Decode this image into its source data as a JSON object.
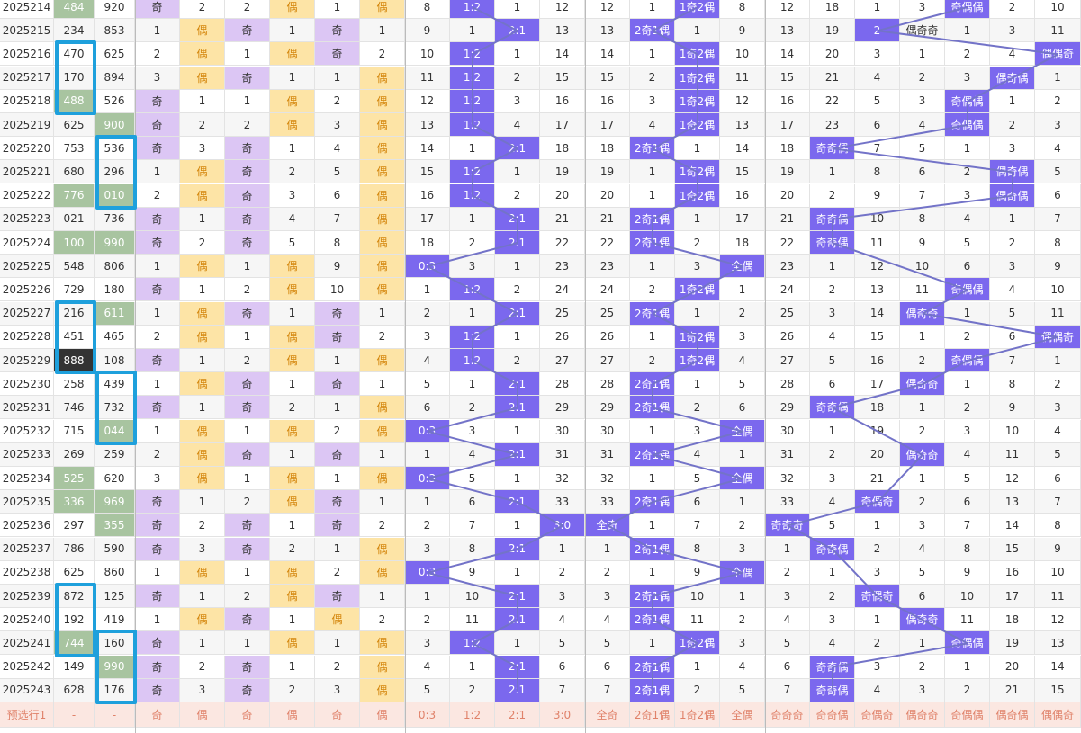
{
  "colors": {
    "odd": "#dcc6f4",
    "even": "#fde4a6",
    "purple": "#7b68ee",
    "green": "#a8c4a0",
    "box": "#1ea0dc",
    "line": "#7373c8"
  },
  "rows": [
    {
      "v": [
        "2025214",
        "484",
        "920",
        "奇",
        "2",
        "2",
        "偶",
        "1",
        "偶",
        "8",
        "1:2",
        "1",
        "12",
        "12",
        "1",
        "1奇2偶",
        "8",
        "12",
        "18",
        "1",
        "3",
        "奇偶偶",
        "2",
        "10"
      ],
      "hl": {
        "1": "green",
        "10": "purple",
        "15": "purple",
        "21": "purple",
        "3": "odd",
        "6": "even",
        "8": "even"
      }
    },
    {
      "v": [
        "2025215",
        "234",
        "853",
        "1",
        "偶",
        "奇",
        "1",
        "奇",
        "1",
        "9",
        "1",
        "2:1",
        "13",
        "13",
        "2奇1偶",
        "1",
        "9",
        "13",
        "19",
        "2",
        "偶奇奇",
        "1",
        "3",
        "11"
      ],
      "hl": {
        "4": "even",
        "5": "odd",
        "7": "odd",
        "11": "purple",
        "14": "purple",
        "19": "purple"
      }
    },
    {
      "v": [
        "2025216",
        "470",
        "625",
        "2",
        "偶",
        "1",
        "偶",
        "奇",
        "2",
        "10",
        "1:2",
        "1",
        "14",
        "14",
        "1",
        "1奇2偶",
        "10",
        "14",
        "20",
        "3",
        "1",
        "2",
        "4",
        "偶偶奇"
      ],
      "hl": {
        "4": "even",
        "6": "even",
        "7": "odd",
        "10": "purple",
        "15": "purple",
        "23": "purple"
      }
    },
    {
      "v": [
        "2025217",
        "170",
        "894",
        "3",
        "偶",
        "奇",
        "1",
        "1",
        "偶",
        "11",
        "1:2",
        "2",
        "15",
        "15",
        "2",
        "1奇2偶",
        "11",
        "15",
        "21",
        "4",
        "2",
        "3",
        "偶奇偶",
        "1"
      ],
      "hl": {
        "4": "even",
        "5": "odd",
        "8": "even",
        "10": "purple",
        "15": "purple",
        "22": "purple"
      }
    },
    {
      "v": [
        "2025218",
        "488",
        "526",
        "奇",
        "1",
        "1",
        "偶",
        "2",
        "偶",
        "12",
        "1:2",
        "3",
        "16",
        "16",
        "3",
        "1奇2偶",
        "12",
        "16",
        "22",
        "5",
        "3",
        "奇偶偶",
        "1",
        "2"
      ],
      "hl": {
        "1": "green",
        "3": "odd",
        "6": "even",
        "8": "even",
        "10": "purple",
        "15": "purple",
        "21": "purple"
      }
    },
    {
      "v": [
        "2025219",
        "625",
        "900",
        "奇",
        "2",
        "2",
        "偶",
        "3",
        "偶",
        "13",
        "1:2",
        "4",
        "17",
        "17",
        "4",
        "1奇2偶",
        "13",
        "17",
        "23",
        "6",
        "4",
        "奇偶偶",
        "2",
        "3"
      ],
      "hl": {
        "2": "green",
        "3": "odd",
        "6": "even",
        "8": "even",
        "10": "purple",
        "15": "purple",
        "21": "purple"
      }
    },
    {
      "v": [
        "2025220",
        "753",
        "536",
        "奇",
        "3",
        "奇",
        "1",
        "4",
        "偶",
        "14",
        "1",
        "2:1",
        "18",
        "18",
        "2奇1偶",
        "1",
        "14",
        "18",
        "奇奇偶",
        "7",
        "5",
        "1",
        "3",
        "4"
      ],
      "hl": {
        "3": "odd",
        "5": "odd",
        "8": "even",
        "11": "purple",
        "14": "purple",
        "18": "purple"
      }
    },
    {
      "v": [
        "2025221",
        "680",
        "296",
        "1",
        "偶",
        "奇",
        "2",
        "5",
        "偶",
        "15",
        "1:2",
        "1",
        "19",
        "19",
        "1",
        "1奇2偶",
        "15",
        "19",
        "1",
        "8",
        "6",
        "2",
        "偶奇偶",
        "5"
      ],
      "hl": {
        "4": "even",
        "5": "odd",
        "8": "even",
        "10": "purple",
        "15": "purple",
        "22": "purple"
      }
    },
    {
      "v": [
        "2025222",
        "776",
        "010",
        "2",
        "偶",
        "奇",
        "3",
        "6",
        "偶",
        "16",
        "1:2",
        "2",
        "20",
        "20",
        "1",
        "1奇2偶",
        "16",
        "20",
        "2",
        "9",
        "7",
        "3",
        "偶奇偶",
        "6"
      ],
      "hl": {
        "1": "green",
        "2": "green",
        "4": "even",
        "5": "odd",
        "8": "even",
        "10": "purple",
        "15": "purple",
        "22": "purple"
      }
    },
    {
      "v": [
        "2025223",
        "021",
        "736",
        "奇",
        "1",
        "奇",
        "4",
        "7",
        "偶",
        "17",
        "1",
        "2:1",
        "21",
        "21",
        "2奇1偶",
        "1",
        "17",
        "21",
        "奇奇偶",
        "10",
        "8",
        "4",
        "1",
        "7"
      ],
      "hl": {
        "3": "odd",
        "5": "odd",
        "8": "even",
        "11": "purple",
        "14": "purple",
        "18": "purple"
      }
    },
    {
      "v": [
        "2025224",
        "100",
        "990",
        "奇",
        "2",
        "奇",
        "5",
        "8",
        "偶",
        "18",
        "2",
        "2:1",
        "22",
        "22",
        "2奇1偶",
        "2",
        "18",
        "22",
        "奇奇偶",
        "11",
        "9",
        "5",
        "2",
        "8"
      ],
      "hl": {
        "1": "green",
        "2": "green",
        "3": "odd",
        "5": "odd",
        "8": "even",
        "11": "purple",
        "14": "purple",
        "18": "purple"
      }
    },
    {
      "v": [
        "2025225",
        "548",
        "806",
        "1",
        "偶",
        "1",
        "偶",
        "9",
        "偶",
        "0:3",
        "3",
        "1",
        "23",
        "23",
        "1",
        "3",
        "全偶",
        "23",
        "1",
        "12",
        "10",
        "6",
        "3",
        "9"
      ],
      "hl": {
        "4": "even",
        "6": "even",
        "8": "even",
        "9": "purple",
        "16": "purple"
      }
    },
    {
      "v": [
        "2025226",
        "729",
        "180",
        "奇",
        "1",
        "2",
        "偶",
        "10",
        "偶",
        "1",
        "1:2",
        "2",
        "24",
        "24",
        "2",
        "1奇2偶",
        "1",
        "24",
        "2",
        "13",
        "11",
        "奇偶偶",
        "4",
        "10"
      ],
      "hl": {
        "3": "odd",
        "6": "even",
        "8": "even",
        "10": "purple",
        "15": "purple",
        "21": "purple"
      }
    },
    {
      "v": [
        "2025227",
        "216",
        "611",
        "1",
        "偶",
        "奇",
        "1",
        "奇",
        "1",
        "2",
        "1",
        "2:1",
        "25",
        "25",
        "2奇1偶",
        "1",
        "2",
        "25",
        "3",
        "14",
        "偶奇奇",
        "1",
        "5",
        "11"
      ],
      "hl": {
        "2": "green",
        "4": "even",
        "5": "odd",
        "7": "odd",
        "11": "purple",
        "14": "purple",
        "20": "purple"
      }
    },
    {
      "v": [
        "2025228",
        "451",
        "465",
        "2",
        "偶",
        "1",
        "偶",
        "奇",
        "2",
        "3",
        "1:2",
        "1",
        "26",
        "26",
        "1",
        "1奇2偶",
        "3",
        "26",
        "4",
        "15",
        "1",
        "2",
        "6",
        "偶偶奇"
      ],
      "hl": {
        "4": "even",
        "6": "even",
        "7": "odd",
        "10": "purple",
        "15": "purple",
        "23": "purple"
      }
    },
    {
      "v": [
        "2025229",
        "888",
        "108",
        "奇",
        "1",
        "2",
        "偶",
        "1",
        "偶",
        "4",
        "1:2",
        "2",
        "27",
        "27",
        "2",
        "1奇2偶",
        "4",
        "27",
        "5",
        "16",
        "2",
        "奇偶偶",
        "7",
        "1"
      ],
      "hl": {
        "1": "dark",
        "3": "odd",
        "6": "even",
        "8": "even",
        "10": "purple",
        "15": "purple",
        "21": "purple"
      }
    },
    {
      "v": [
        "2025230",
        "258",
        "439",
        "1",
        "偶",
        "奇",
        "1",
        "奇",
        "1",
        "5",
        "1",
        "2:1",
        "28",
        "28",
        "2奇1偶",
        "1",
        "5",
        "28",
        "6",
        "17",
        "偶奇奇",
        "1",
        "8",
        "2"
      ],
      "hl": {
        "4": "even",
        "5": "odd",
        "7": "odd",
        "11": "purple",
        "14": "purple",
        "20": "purple"
      }
    },
    {
      "v": [
        "2025231",
        "746",
        "732",
        "奇",
        "1",
        "奇",
        "2",
        "1",
        "偶",
        "6",
        "2",
        "2:1",
        "29",
        "29",
        "2奇1偶",
        "2",
        "6",
        "29",
        "奇奇偶",
        "18",
        "1",
        "2",
        "9",
        "3"
      ],
      "hl": {
        "3": "odd",
        "5": "odd",
        "8": "even",
        "11": "purple",
        "14": "purple",
        "18": "purple"
      }
    },
    {
      "v": [
        "2025232",
        "715",
        "044",
        "1",
        "偶",
        "1",
        "偶",
        "2",
        "偶",
        "0:3",
        "3",
        "1",
        "30",
        "30",
        "1",
        "3",
        "全偶",
        "30",
        "1",
        "19",
        "2",
        "3",
        "10",
        "4"
      ],
      "hl": {
        "2": "green",
        "4": "even",
        "6": "even",
        "8": "even",
        "9": "purple",
        "16": "purple"
      }
    },
    {
      "v": [
        "2025233",
        "269",
        "259",
        "2",
        "偶",
        "奇",
        "1",
        "奇",
        "1",
        "1",
        "4",
        "2:1",
        "31",
        "31",
        "2奇1偶",
        "4",
        "1",
        "31",
        "2",
        "20",
        "偶奇奇",
        "4",
        "11",
        "5"
      ],
      "hl": {
        "4": "even",
        "5": "odd",
        "7": "odd",
        "11": "purple",
        "14": "purple",
        "20": "purple"
      }
    },
    {
      "v": [
        "2025234",
        "525",
        "620",
        "3",
        "偶",
        "1",
        "偶",
        "1",
        "偶",
        "0:3",
        "5",
        "1",
        "32",
        "32",
        "1",
        "5",
        "全偶",
        "32",
        "3",
        "21",
        "1",
        "5",
        "12",
        "6"
      ],
      "hl": {
        "1": "green",
        "4": "even",
        "6": "even",
        "8": "even",
        "9": "purple",
        "16": "purple"
      }
    },
    {
      "v": [
        "2025235",
        "336",
        "969",
        "奇",
        "1",
        "2",
        "偶",
        "奇",
        "1",
        "1",
        "6",
        "2:1",
        "33",
        "33",
        "2奇1偶",
        "6",
        "1",
        "33",
        "4",
        "奇偶奇",
        "2",
        "6",
        "13",
        "7"
      ],
      "hl": {
        "1": "green",
        "2": "green",
        "3": "odd",
        "6": "even",
        "7": "odd",
        "11": "purple",
        "14": "purple",
        "19": "purple"
      }
    },
    {
      "v": [
        "2025236",
        "297",
        "355",
        "奇",
        "2",
        "奇",
        "1",
        "奇",
        "2",
        "2",
        "7",
        "1",
        "3:0",
        "全奇",
        "1",
        "7",
        "2",
        "奇奇奇",
        "5",
        "1",
        "3",
        "7",
        "14",
        "8"
      ],
      "hl": {
        "2": "green",
        "3": "odd",
        "5": "odd",
        "7": "odd",
        "12": "purple",
        "13": "purple",
        "17": "purple"
      }
    },
    {
      "v": [
        "2025237",
        "786",
        "590",
        "奇",
        "3",
        "奇",
        "2",
        "1",
        "偶",
        "3",
        "8",
        "2:1",
        "1",
        "1",
        "2奇1偶",
        "8",
        "3",
        "1",
        "奇奇偶",
        "2",
        "4",
        "8",
        "15",
        "9"
      ],
      "hl": {
        "3": "odd",
        "5": "odd",
        "8": "even",
        "11": "purple",
        "14": "purple",
        "18": "purple"
      }
    },
    {
      "v": [
        "2025238",
        "625",
        "860",
        "1",
        "偶",
        "1",
        "偶",
        "2",
        "偶",
        "0:3",
        "9",
        "1",
        "2",
        "2",
        "1",
        "9",
        "全偶",
        "2",
        "1",
        "3",
        "5",
        "9",
        "16",
        "10"
      ],
      "hl": {
        "4": "even",
        "6": "even",
        "8": "even",
        "9": "purple",
        "16": "purple"
      }
    },
    {
      "v": [
        "2025239",
        "872",
        "125",
        "奇",
        "1",
        "2",
        "偶",
        "奇",
        "1",
        "1",
        "10",
        "2:1",
        "3",
        "3",
        "2奇1偶",
        "10",
        "1",
        "3",
        "2",
        "奇偶奇",
        "6",
        "10",
        "17",
        "11"
      ],
      "hl": {
        "3": "odd",
        "6": "even",
        "7": "odd",
        "11": "purple",
        "14": "purple",
        "19": "purple"
      }
    },
    {
      "v": [
        "2025240",
        "192",
        "419",
        "1",
        "偶",
        "奇",
        "1",
        "偶",
        "2",
        "2",
        "11",
        "2:1",
        "4",
        "4",
        "2奇1偶",
        "11",
        "2",
        "4",
        "3",
        "1",
        "偶奇奇",
        "11",
        "18",
        "12"
      ],
      "hl": {
        "4": "even",
        "5": "odd",
        "7": "even",
        "11": "purple",
        "14": "purple",
        "20": "purple"
      }
    },
    {
      "v": [
        "2025241",
        "744",
        "160",
        "奇",
        "1",
        "1",
        "偶",
        "1",
        "偶",
        "3",
        "1:2",
        "1",
        "5",
        "5",
        "1",
        "1奇2偶",
        "3",
        "5",
        "4",
        "2",
        "1",
        "奇偶偶",
        "19",
        "13"
      ],
      "hl": {
        "1": "green",
        "3": "odd",
        "6": "even",
        "8": "even",
        "10": "purple",
        "15": "purple",
        "21": "purple"
      }
    },
    {
      "v": [
        "2025242",
        "149",
        "990",
        "奇",
        "2",
        "奇",
        "1",
        "2",
        "偶",
        "4",
        "1",
        "2:1",
        "6",
        "6",
        "2奇1偶",
        "1",
        "4",
        "6",
        "奇奇偶",
        "3",
        "2",
        "1",
        "20",
        "14"
      ],
      "hl": {
        "2": "green",
        "3": "odd",
        "5": "odd",
        "8": "even",
        "11": "purple",
        "14": "purple",
        "18": "purple"
      }
    },
    {
      "v": [
        "2025243",
        "628",
        "176",
        "奇",
        "3",
        "奇",
        "2",
        "3",
        "偶",
        "5",
        "2",
        "2:1",
        "7",
        "7",
        "2奇1偶",
        "2",
        "5",
        "7",
        "奇奇偶",
        "4",
        "3",
        "2",
        "21",
        "15"
      ],
      "hl": {
        "3": "odd",
        "5": "odd",
        "8": "even",
        "11": "purple",
        "14": "purple",
        "18": "purple"
      }
    }
  ],
  "footer": [
    "预选行1",
    "-",
    "-",
    "奇",
    "偶",
    "奇",
    "偶",
    "奇",
    "偶",
    "0:3",
    "1:2",
    "2:1",
    "3:0",
    "全奇",
    "2奇1偶",
    "1奇2偶",
    "全偶",
    "奇奇奇",
    "奇奇偶",
    "奇偶奇",
    "偶奇奇",
    "奇偶偶",
    "偶奇偶",
    "偶偶奇"
  ]
}
